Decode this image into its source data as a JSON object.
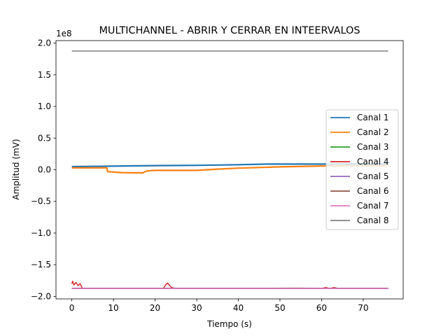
{
  "chart_data": {
    "type": "line",
    "title": "MULTICHANNEL - ABRIR Y CERRAR EN INTEERVALOS",
    "xlabel": "Tiempo (s)",
    "ylabel": "Amplitud (mV)",
    "y_scale_label": "1e8",
    "xlim": [
      -3.8,
      79.6
    ],
    "ylim": [
      -204000000.0,
      204000000.0
    ],
    "xticks": [
      0,
      10,
      20,
      30,
      40,
      50,
      60,
      70
    ],
    "xtick_labels": [
      "0",
      "10",
      "20",
      "30",
      "40",
      "50",
      "60",
      "70"
    ],
    "yticks": [
      -200000000.0,
      -150000000.0,
      -100000000.0,
      -50000000.0,
      0,
      50000000.0,
      100000000.0,
      150000000.0,
      200000000.0
    ],
    "ytick_labels": [
      "−2.0",
      "−1.5",
      "−1.0",
      "−0.5",
      "0.0",
      "0.5",
      "1.0",
      "1.5",
      "2.0"
    ],
    "grid": false,
    "legend_position": "center-right",
    "series": [
      {
        "name": "Canal 1",
        "color": "#1f77b4",
        "x": [
          0,
          8,
          12,
          20,
          30,
          40,
          47,
          53,
          60,
          70,
          76
        ],
        "y": [
          5000000.0,
          5500000.0,
          6000000.0,
          6500000.0,
          7000000.0,
          8000000.0,
          9000000.0,
          9000000.0,
          9000000.0,
          9000000.0,
          9000000.0
        ]
      },
      {
        "name": "Canal 2",
        "color": "#ff7f0e",
        "x": [
          0,
          8.4,
          8.6,
          12,
          17,
          18,
          20,
          30,
          35,
          40,
          50,
          60,
          70,
          76
        ],
        "y": [
          3000000.0,
          3000000.0,
          -3000000.0,
          -4500000.0,
          -5000000.0,
          -2000000.0,
          -1000000.0,
          -1000000.0,
          1000000.0,
          2500000.0,
          4500000.0,
          6000000.0,
          6500000.0,
          6500000.0
        ]
      },
      {
        "name": "Canal 3",
        "color": "#2ca02c",
        "x": [
          0,
          76
        ],
        "y": [
          -187500000.0,
          -187500000.0
        ]
      },
      {
        "name": "Canal 4",
        "color": "#d62728",
        "x": [
          0,
          0.2,
          0.5,
          1.0,
          1.5,
          2.0,
          2.5,
          4,
          22,
          22.5,
          23,
          23.5,
          24,
          25,
          55,
          60,
          61,
          62,
          63,
          64,
          76
        ],
        "y": [
          -180000000.0,
          -176000000.0,
          -182000000.0,
          -178000000.0,
          -183000000.0,
          -180000000.0,
          -187000000.0,
          -187500000.0,
          -187500000.0,
          -182000000.0,
          -179000000.0,
          -183000000.0,
          -186000000.0,
          -187500000.0,
          -187000000.0,
          -187500000.0,
          -186000000.0,
          -187500000.0,
          -186000000.0,
          -187500000.0,
          -187500000.0
        ]
      },
      {
        "name": "Canal 5",
        "color": "#9467bd",
        "x": [
          0,
          76
        ],
        "y": [
          -187200000.0,
          -187200000.0
        ]
      },
      {
        "name": "Canal 6",
        "color": "#8c564b",
        "x": [
          0,
          76
        ],
        "y": [
          -187400000.0,
          -187400000.0
        ]
      },
      {
        "name": "Canal 7",
        "color": "#e377c2",
        "x": [
          0,
          76
        ],
        "y": [
          -187600000.0,
          -187600000.0
        ]
      },
      {
        "name": "Canal 8",
        "color": "#7f7f7f",
        "x": [
          0,
          76
        ],
        "y": [
          187500000.0,
          187500000.0
        ]
      }
    ]
  }
}
